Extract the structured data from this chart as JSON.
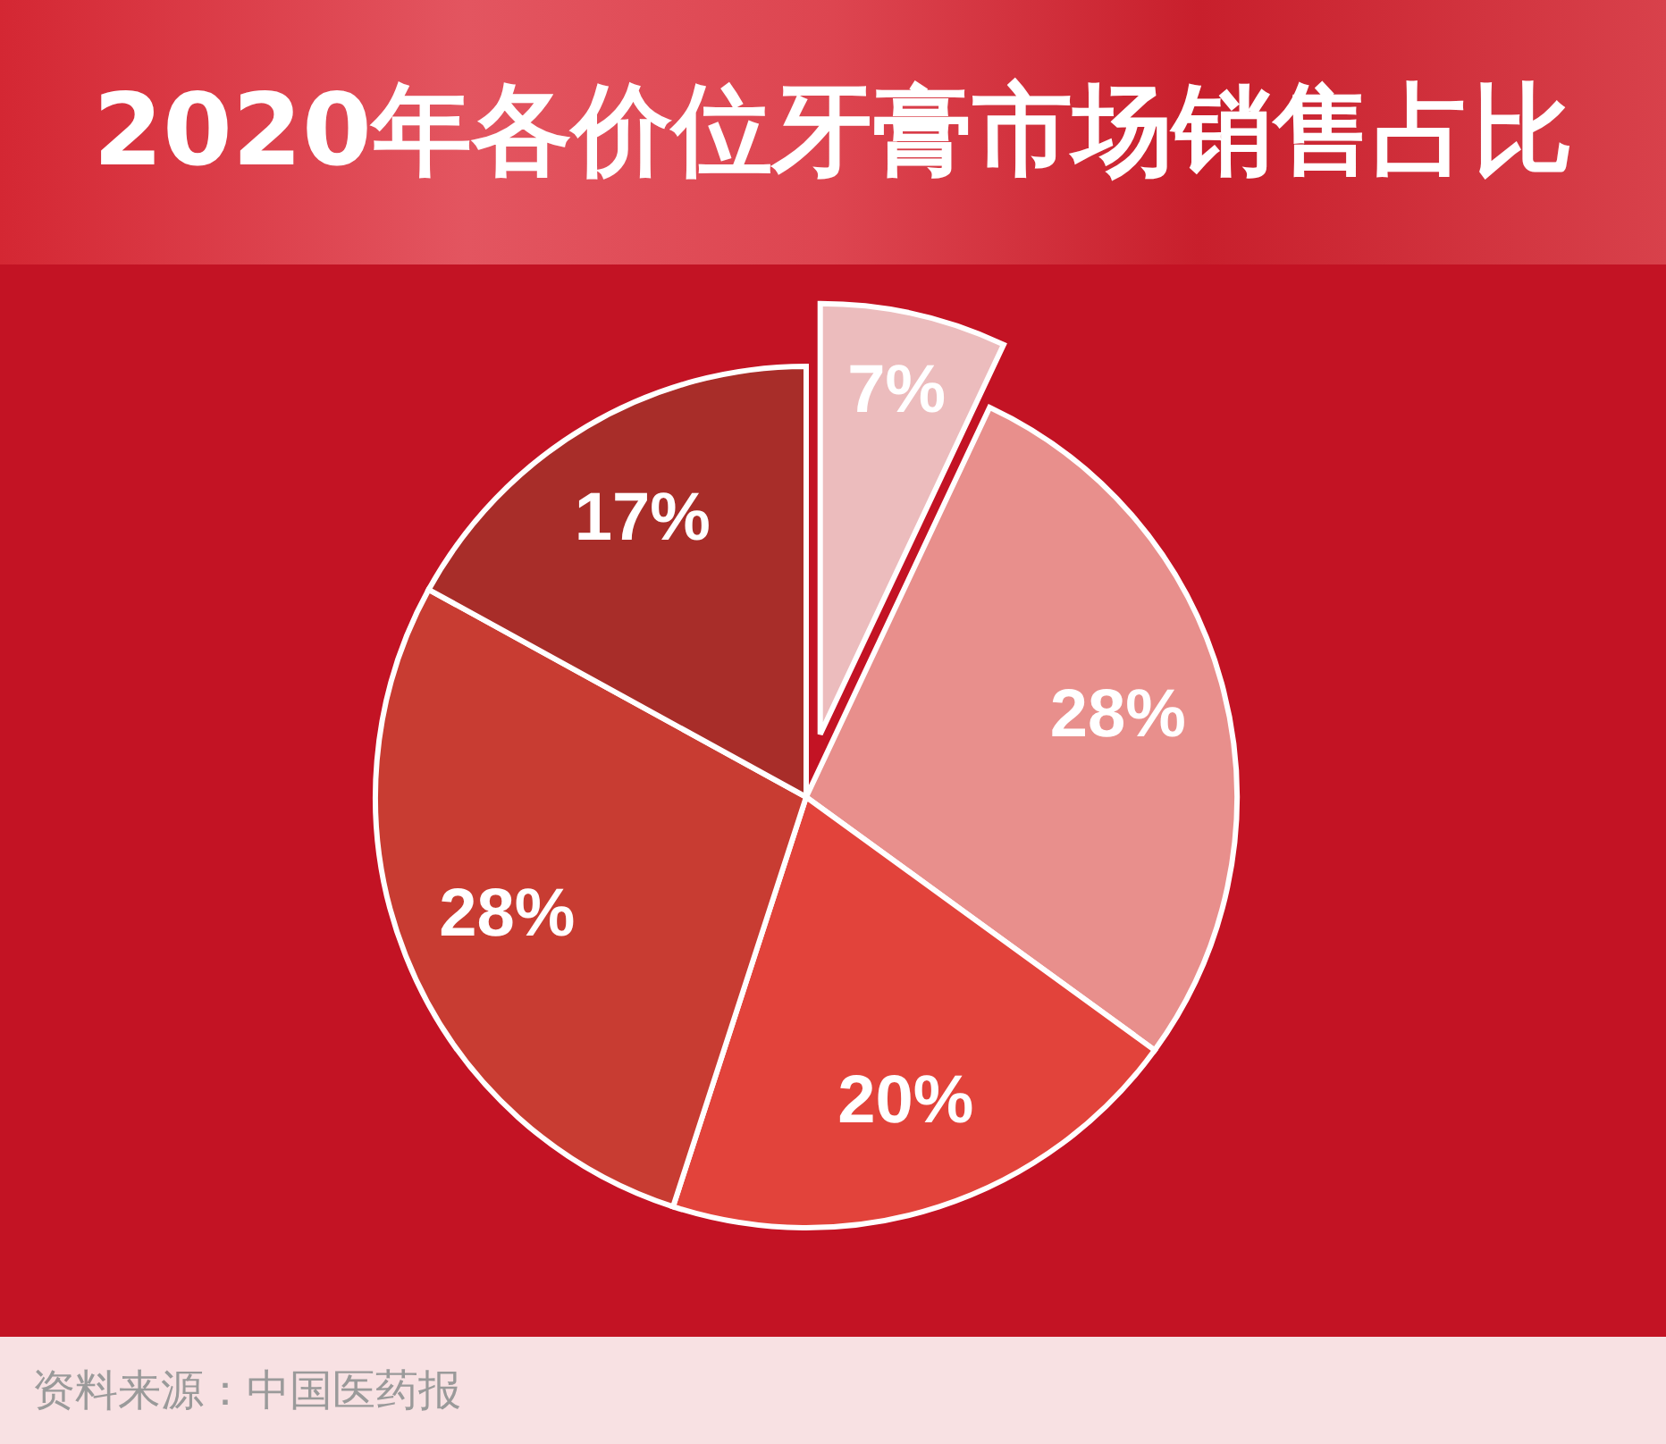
{
  "chart_data": {
    "type": "pie",
    "title": "2020年各价位牙膏市场销售占比",
    "categories": [
      null,
      null,
      null,
      null,
      null
    ],
    "values": [
      7,
      28,
      20,
      28,
      17
    ],
    "colors": [
      "#ecbcbd",
      "#e88f8c",
      "#e2433b",
      "#c83c32",
      "#a82d29"
    ],
    "value_labels": [
      "7%",
      "28%",
      "20%",
      "28%",
      "17%"
    ],
    "annotations": [
      "资料来源：中国医药报"
    ]
  }
}
